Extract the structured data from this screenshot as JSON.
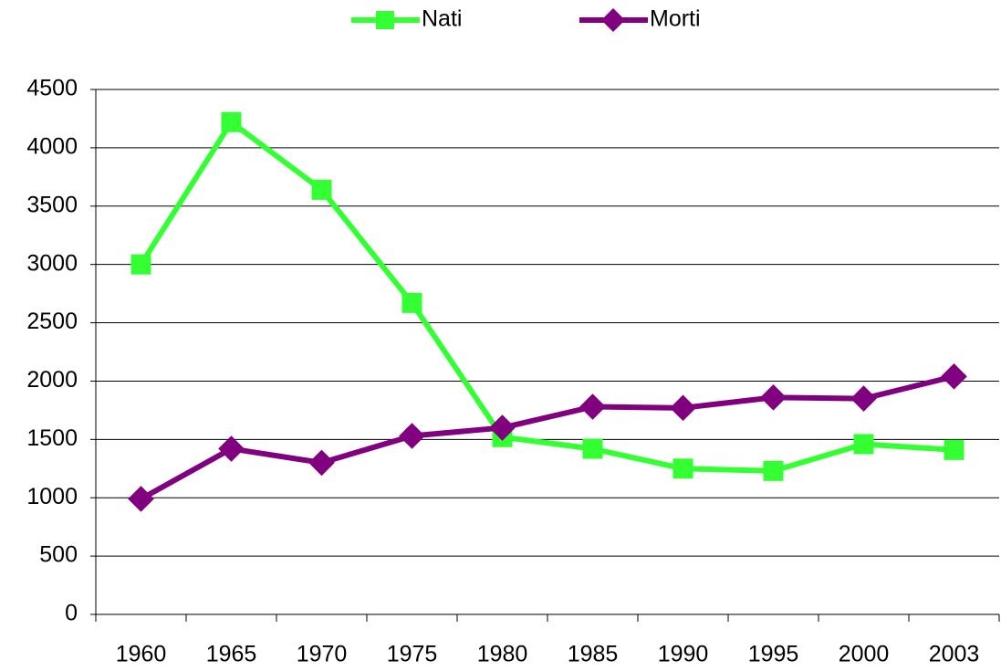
{
  "chart_data": {
    "type": "line",
    "categories": [
      "1960",
      "1965",
      "1970",
      "1975",
      "1980",
      "1985",
      "1990",
      "1995",
      "2000",
      "2003"
    ],
    "series": [
      {
        "name": "Nati",
        "color": "#33ff33",
        "marker": "square",
        "values": [
          3000,
          4220,
          3640,
          2670,
          1520,
          1420,
          1250,
          1230,
          1460,
          1410
        ]
      },
      {
        "name": "Morti",
        "color": "#800080",
        "marker": "diamond",
        "values": [
          990,
          1420,
          1300,
          1530,
          1600,
          1780,
          1770,
          1860,
          1850,
          2040
        ]
      }
    ],
    "ylim": [
      0,
      4500
    ],
    "yticks": [
      0,
      500,
      1000,
      1500,
      2000,
      2500,
      3000,
      3500,
      4000,
      4500
    ],
    "grid": true,
    "legend": "top"
  }
}
